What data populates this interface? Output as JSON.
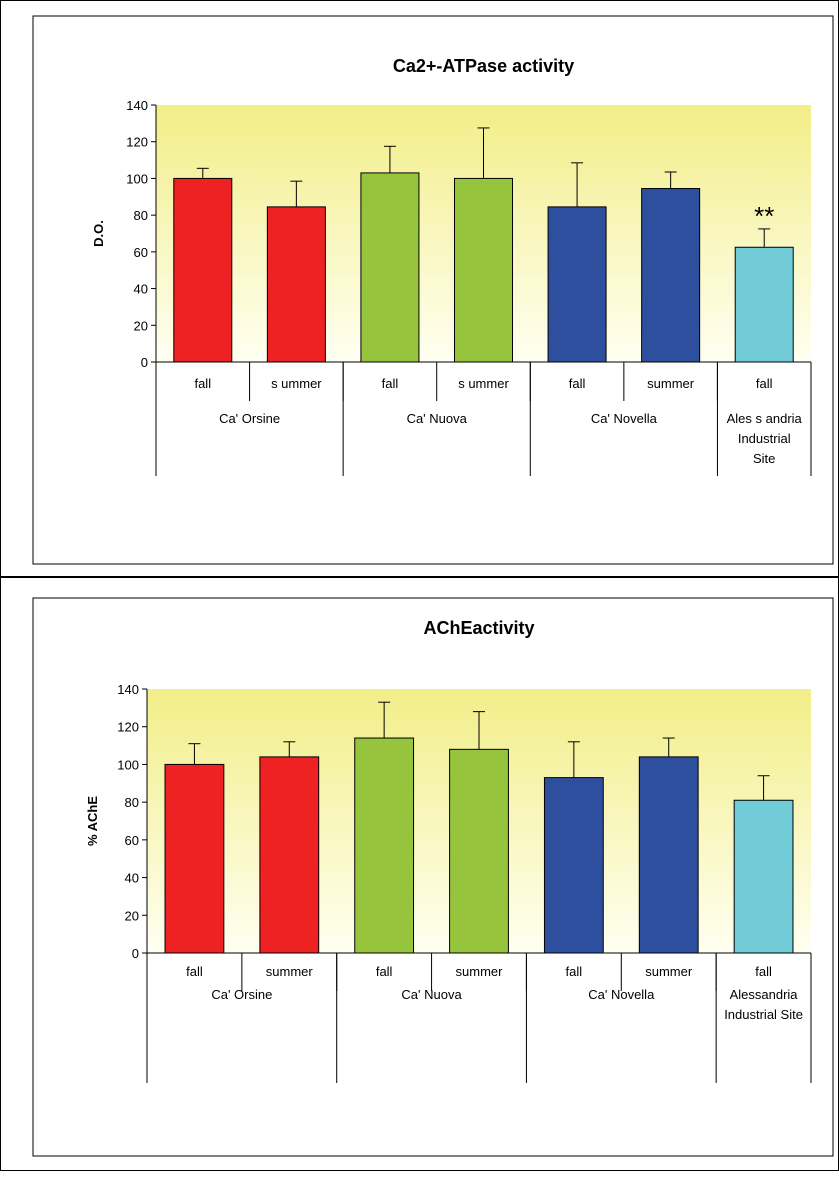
{
  "chart_data": [
    {
      "type": "bar",
      "title": "Ca2+-ATPase activity",
      "ylabel": "D.O.",
      "ylim": [
        0,
        140
      ],
      "yticks": [
        0,
        20,
        40,
        60,
        80,
        100,
        120,
        140
      ],
      "categories": [
        "fall",
        "summer",
        "fall",
        "summer",
        "fall",
        "summer",
        "fall"
      ],
      "category_display": [
        "fall",
        "s ummer",
        "fall",
        "s ummer",
        "fall",
        "summer",
        "fall"
      ],
      "groups": [
        {
          "label": [
            "Ca' Orsine"
          ],
          "count": 2
        },
        {
          "label": [
            "Ca' Nuova"
          ],
          "count": 2
        },
        {
          "label": [
            "Ca' Novella"
          ],
          "count": 2
        },
        {
          "label": [
            "Ales s andria",
            "Industrial",
            "Site"
          ],
          "count": 1
        }
      ],
      "values": [
        100,
        84.5,
        103,
        100,
        84.5,
        94.5,
        62.5
      ],
      "errors": [
        5.5,
        14,
        14.5,
        27.5,
        24,
        9,
        10
      ],
      "colors": [
        "#ee2222",
        "#ee2222",
        "#96c43c",
        "#96c43c",
        "#2e4e9e",
        "#2e4e9e",
        "#72ccd8"
      ],
      "annotations": [
        {
          "index": 6,
          "text": "**"
        }
      ],
      "background_gradient": [
        "#f2ee88",
        "#fffff2"
      ],
      "grid": false,
      "legend": "none"
    },
    {
      "type": "bar",
      "title": "AChE activity",
      "title_display": "AChEactivity",
      "ylabel": "% AChE",
      "ylim": [
        0,
        140
      ],
      "yticks": [
        0,
        20,
        40,
        60,
        80,
        100,
        120,
        140
      ],
      "categories": [
        "fall",
        "summer",
        "fall",
        "summer",
        "fall",
        "summer",
        "fall"
      ],
      "category_display": [
        "fall",
        "summer",
        "fall",
        "summer",
        "fall",
        "summer",
        "fall"
      ],
      "groups": [
        {
          "label": [
            "Ca' Orsine"
          ],
          "count": 2
        },
        {
          "label": [
            "Ca' Nuova"
          ],
          "count": 2
        },
        {
          "label": [
            "Ca' Novella"
          ],
          "count": 2
        },
        {
          "label": [
            "Alessandria",
            "Industrial Site"
          ],
          "count": 1
        }
      ],
      "values": [
        100,
        104,
        114,
        108,
        93,
        104,
        81
      ],
      "errors": [
        11,
        8,
        19,
        20,
        19,
        10,
        13
      ],
      "colors": [
        "#ee2222",
        "#ee2222",
        "#96c43c",
        "#96c43c",
        "#2e4e9e",
        "#2e4e9e",
        "#72ccd8"
      ],
      "annotations": [],
      "background_gradient": [
        "#f2ee88",
        "#fffff2"
      ],
      "grid": false,
      "legend": "none"
    }
  ]
}
